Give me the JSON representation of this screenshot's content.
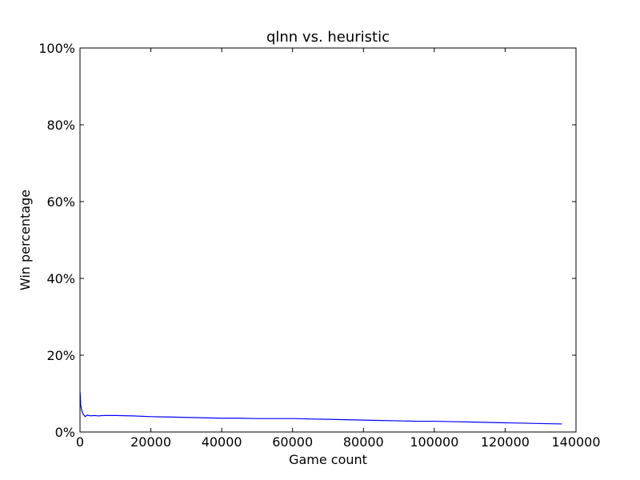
{
  "chart_data": {
    "type": "line",
    "title": "qlnn vs. heuristic",
    "xlabel": "Game count",
    "ylabel": "Win percentage",
    "xlim": [
      0,
      140000
    ],
    "ylim": [
      0,
      100
    ],
    "x_ticks": [
      "0",
      "20000",
      "40000",
      "60000",
      "80000",
      "100000",
      "120000",
      "140000"
    ],
    "y_ticks": [
      "0%",
      "20%",
      "40%",
      "60%",
      "80%",
      "100%"
    ],
    "grid": false,
    "legend": "none",
    "series": [
      {
        "color": "#0000ff",
        "x": [
          0,
          100,
          200,
          400,
          700,
          1000,
          1500,
          2000,
          3000,
          4000,
          5000,
          7000,
          10000,
          15000,
          20000,
          25000,
          30000,
          35000,
          40000,
          45000,
          50000,
          55000,
          60000,
          65000,
          70000,
          75000,
          80000,
          85000,
          90000,
          95000,
          100000,
          105000,
          110000,
          115000,
          120000,
          125000,
          130000,
          136000
        ],
        "values": [
          10.5,
          9.0,
          7.0,
          6.0,
          5.0,
          4.5,
          4.0,
          4.4,
          4.2,
          4.3,
          4.2,
          4.3,
          4.3,
          4.2,
          4.0,
          3.9,
          3.8,
          3.7,
          3.6,
          3.6,
          3.5,
          3.5,
          3.5,
          3.4,
          3.3,
          3.2,
          3.1,
          3.0,
          2.9,
          2.8,
          2.8,
          2.7,
          2.6,
          2.5,
          2.4,
          2.3,
          2.2,
          2.1
        ]
      }
    ]
  }
}
